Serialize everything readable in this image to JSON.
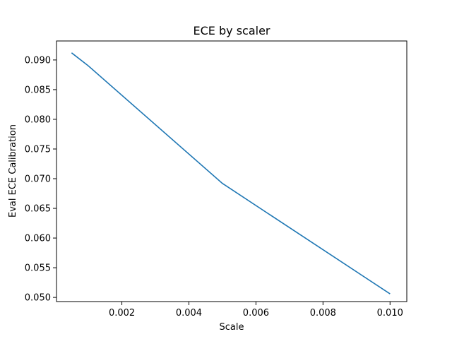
{
  "chart_data": {
    "type": "line",
    "title": "ECE by scaler",
    "xlabel": "Scale",
    "ylabel": "Eval ECE Calibration",
    "xlim": [
      5e-05,
      0.0105
    ],
    "ylim": [
      0.0493,
      0.0932
    ],
    "x_ticks": [
      0.002,
      0.004,
      0.006,
      0.008,
      0.01
    ],
    "x_tick_labels": [
      "0.002",
      "0.004",
      "0.006",
      "0.008",
      "0.010"
    ],
    "y_ticks": [
      0.05,
      0.055,
      0.06,
      0.065,
      0.07,
      0.075,
      0.08,
      0.085,
      0.09
    ],
    "y_tick_labels": [
      "0.050",
      "0.055",
      "0.060",
      "0.065",
      "0.070",
      "0.075",
      "0.080",
      "0.085",
      "0.090"
    ],
    "grid": false,
    "series": [
      {
        "color": "#1f77b4",
        "x": [
          0.0005,
          0.001,
          0.005,
          0.01
        ],
        "y": [
          0.0912,
          0.089,
          0.0692,
          0.0506
        ]
      }
    ]
  }
}
